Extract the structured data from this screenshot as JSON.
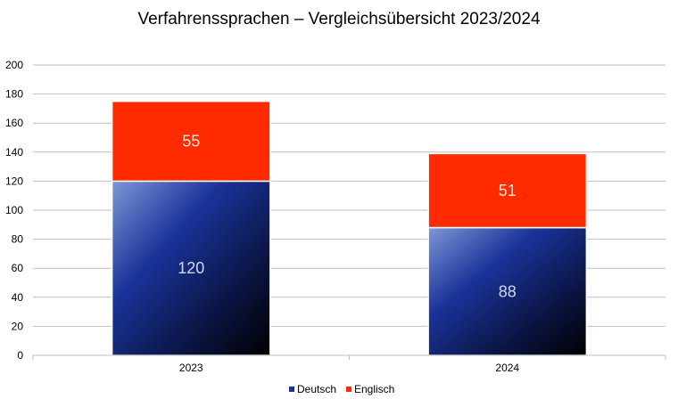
{
  "chart_data": {
    "type": "bar",
    "stacked": true,
    "title": "Verfahrenssprachen – Vergleichsübersicht 2023/2024",
    "categories": [
      "2023",
      "2024"
    ],
    "series": [
      {
        "name": "Deutsch",
        "values": [
          120,
          88
        ],
        "color": "#1a3399",
        "label_color": "#d0d8f0"
      },
      {
        "name": "Englisch",
        "values": [
          55,
          51
        ],
        "color": "#ff2a00",
        "label_color": "#ffe4d0"
      }
    ],
    "xlabel": "",
    "ylabel": "",
    "ylim": [
      0,
      200
    ],
    "yticks": [
      0,
      20,
      40,
      60,
      80,
      100,
      120,
      140,
      160,
      180,
      200
    ],
    "grid": true,
    "legend_position": "bottom"
  }
}
